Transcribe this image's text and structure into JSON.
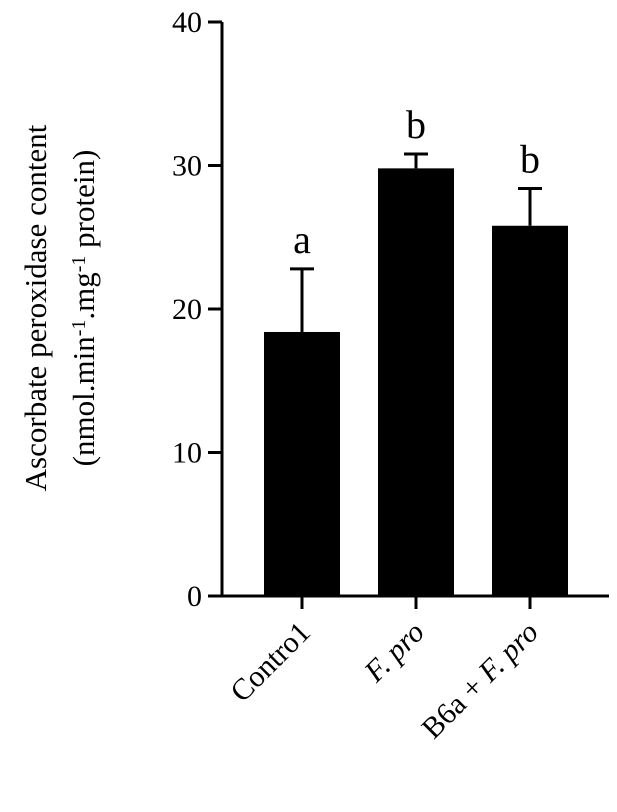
{
  "chart_data": {
    "type": "bar",
    "categories": [
      "Contro1",
      "F. pro",
      "B6a + F. pro"
    ],
    "category_parts": [
      [
        {
          "text": "Contro1",
          "italic": false
        }
      ],
      [
        {
          "text": "F. pro",
          "italic": true
        }
      ],
      [
        {
          "text": "B6a + ",
          "italic": false
        },
        {
          "text": "F. pro",
          "italic": true
        }
      ]
    ],
    "values": [
      18.4,
      29.8,
      25.8
    ],
    "errors": [
      4.4,
      1.0,
      2.6
    ],
    "significance_letters": [
      "a",
      "b",
      "b"
    ],
    "ylabel_line1": "Ascorbate peroxidase content",
    "ylabel_line2_parts": [
      {
        "text": "(nmol.min",
        "sup": false
      },
      {
        "text": "-1",
        "sup": true
      },
      {
        "text": ".mg",
        "sup": false
      },
      {
        "text": "-1",
        "sup": true
      },
      {
        "text": " protein)",
        "sup": false
      }
    ],
    "ylim": [
      0,
      40
    ],
    "yticks": [
      0,
      10,
      20,
      30,
      40
    ],
    "bar_color": "#000000",
    "grid": false
  }
}
